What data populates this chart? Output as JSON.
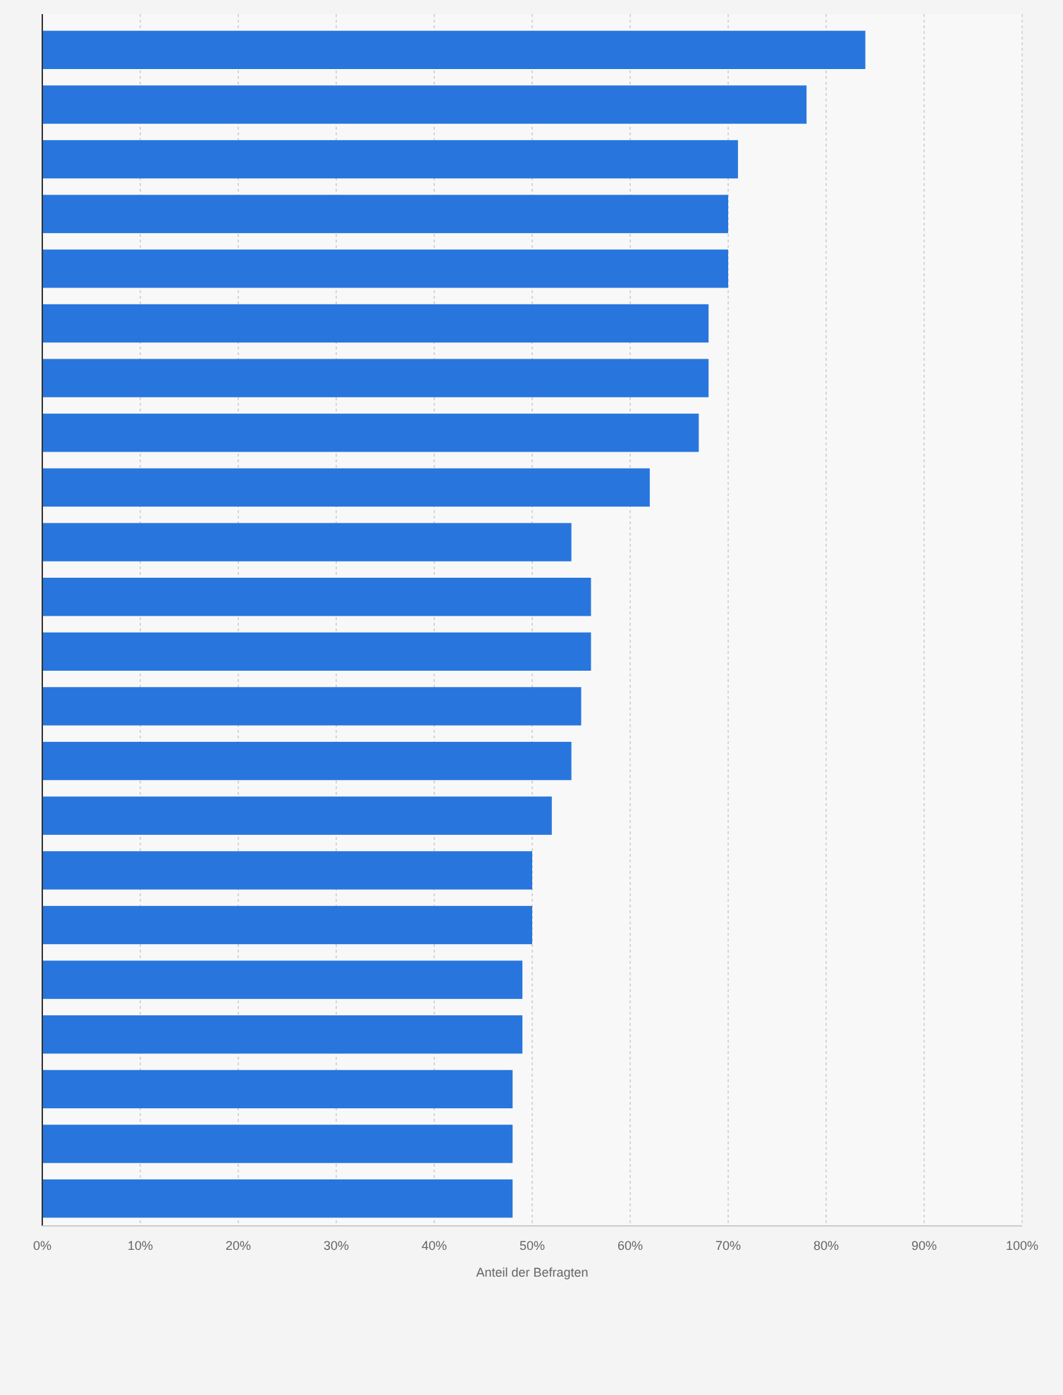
{
  "chart_data": {
    "type": "bar",
    "orientation": "horizontal",
    "xlabel": "Anteil der Befragten",
    "categories": [
      null,
      null,
      null,
      null,
      null,
      null,
      null,
      null,
      null,
      null,
      null,
      null,
      null,
      null,
      null,
      null,
      null,
      null,
      null,
      null,
      null,
      null
    ],
    "values": [
      84,
      78,
      71,
      70,
      70,
      68,
      68,
      67,
      62,
      54,
      56,
      56,
      55,
      54,
      52,
      50,
      50,
      49,
      49,
      48,
      48,
      48
    ],
    "color": "#2876dd",
    "xlim": [
      0,
      100
    ],
    "xticks": [
      {
        "value": 0,
        "label": "0%"
      },
      {
        "value": 10,
        "label": "10%"
      },
      {
        "value": 20,
        "label": "20%"
      },
      {
        "value": 30,
        "label": "30%"
      },
      {
        "value": 40,
        "label": "40%"
      },
      {
        "value": 50,
        "label": "50%"
      },
      {
        "value": 60,
        "label": "60%"
      },
      {
        "value": 70,
        "label": "70%"
      },
      {
        "value": 80,
        "label": "80%"
      },
      {
        "value": 90,
        "label": "90%"
      },
      {
        "value": 100,
        "label": "100%"
      }
    ],
    "grid": "x"
  }
}
